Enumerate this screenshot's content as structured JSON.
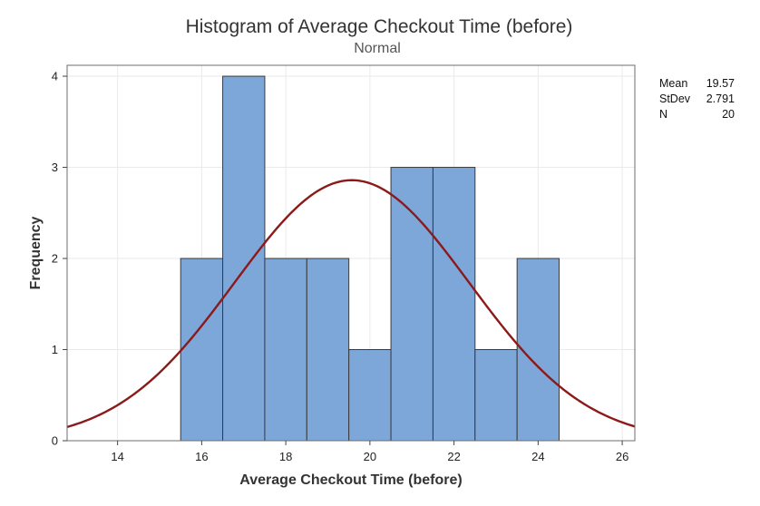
{
  "chart_data": {
    "type": "histogram",
    "title": "Histogram of Average Checkout Time (before)",
    "subtitle": "Normal",
    "xlabel": "Average Checkout Time (before)",
    "ylabel": "Frequency",
    "xlim": [
      12.8,
      26.3
    ],
    "ylim": [
      0,
      4.12
    ],
    "x_ticks": [
      "14",
      "16",
      "18",
      "20",
      "22",
      "24",
      "26"
    ],
    "y_ticks": [
      "0",
      "1",
      "2",
      "3",
      "4"
    ],
    "bins": [
      {
        "start": 15.5,
        "end": 16.5,
        "count": 2
      },
      {
        "start": 16.5,
        "end": 17.5,
        "count": 4
      },
      {
        "start": 17.5,
        "end": 18.5,
        "count": 2
      },
      {
        "start": 18.5,
        "end": 19.5,
        "count": 2
      },
      {
        "start": 19.5,
        "end": 20.5,
        "count": 1
      },
      {
        "start": 20.5,
        "end": 21.5,
        "count": 3
      },
      {
        "start": 21.5,
        "end": 22.5,
        "count": 3
      },
      {
        "start": 22.5,
        "end": 23.5,
        "count": 1
      },
      {
        "start": 23.5,
        "end": 24.5,
        "count": 2
      }
    ],
    "fit": {
      "type": "normal",
      "mean": 19.57,
      "stdev": 2.791,
      "n": 20,
      "bin_width": 1
    },
    "stats": [
      {
        "label": "Mean",
        "value": "19.57"
      },
      {
        "label": "StDev",
        "value": "2.791"
      },
      {
        "label": "N",
        "value": "20"
      }
    ],
    "grid": true,
    "colors": {
      "bar_fill": "#7da6d9",
      "bar_stroke": "#3a3a3a",
      "curve": "#8b1a1a",
      "grid": "#eaeaea"
    }
  }
}
